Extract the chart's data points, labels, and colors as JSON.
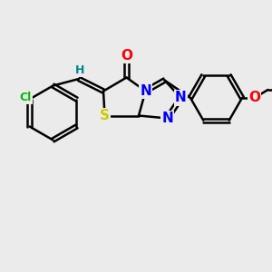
{
  "bg_color": "#ebebeb",
  "bond_color": "#000000",
  "bond_width": 1.8,
  "N_color": "#0000ff",
  "O_color": "#ff0000",
  "S_color": "#cccc00",
  "Cl_color": "#00bb00",
  "H_color": "#008888",
  "fs_large": 11,
  "fs_small": 9,
  "xlim": [
    0,
    10
  ],
  "ylim": [
    0,
    10
  ]
}
